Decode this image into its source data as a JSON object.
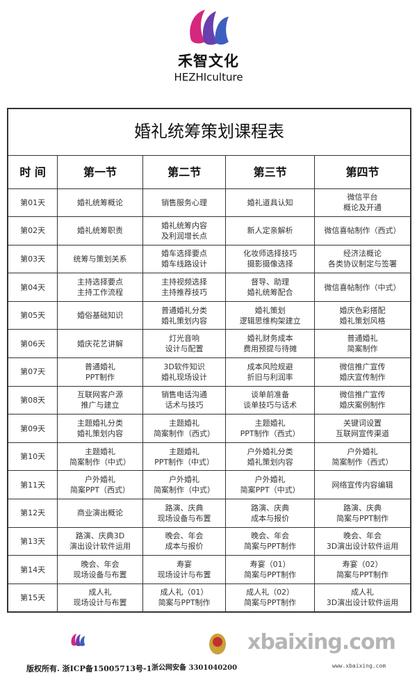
{
  "brand": {
    "name_cn": "禾智文化",
    "name_en": "HEZHIculture",
    "colors": {
      "magenta": "#d4277e",
      "blue": "#3d5fc0"
    }
  },
  "table": {
    "title": "婚礼统筹策划课程表",
    "headers": [
      "时 间",
      "第一节",
      "第二节",
      "第三节",
      "第四节"
    ],
    "rows": [
      [
        "第01天",
        "婚礼统筹概论",
        "销售服务心理",
        "婚礼道具认知",
        "微信平台\n概论及开通"
      ],
      [
        "第02天",
        "婚礼统筹职责",
        "婚礼统筹内容\n及利润增长点",
        "新人定亲解析",
        "微信喜帖制作（西式）"
      ],
      [
        "第03天",
        "统筹与策划关系",
        "婚车选择要点\n婚车线路设计",
        "化妆师选择技巧\n摄影摄像选择",
        "经济法概论\n各类协议制定与签署"
      ],
      [
        "第04天",
        "主持选择要点\n主持工作流程",
        "主持视频选择\n主持推荐技巧",
        "督导、助理\n婚礼统筹配合",
        "微信喜帖制作（中式）"
      ],
      [
        "第05天",
        "婚俗基础知识",
        "普通婚礼分类\n婚礼策划内容",
        "婚礼策划\n逻辑思维构架建立",
        "婚庆色彩搭配\n婚礼策划风格"
      ],
      [
        "第06天",
        "婚庆花艺讲解",
        "灯光音响\n设计与配置",
        "婚礼财务成本\n费用预提与待摊",
        "普通婚礼\n简案制作"
      ],
      [
        "第07天",
        "普通婚礼\nPPT制作",
        "3D软件知识\n婚礼现场设计",
        "成本风险规避\n折旧与利润率",
        "微信推广宣传\n婚庆宣传制作"
      ],
      [
        "第08天",
        "互联网客户源\n推广与建立",
        "销售电话沟通\n话术与技巧",
        "谈单前准备\n谈单技巧与话术",
        "微信推广宣传\n婚庆案例制作"
      ],
      [
        "第09天",
        "主题婚礼分类\n婚礼策划内容",
        "主题婚礼\n简案制作（西式）",
        "主题婚礼\nPPT制作（西式）",
        "关键词设置\n互联网宣传渠道"
      ],
      [
        "第10天",
        "主题婚礼\n简案制作（中式）",
        "主题婚礼\nPPT制作（中式）",
        "户外婚礼分类\n婚礼策划内容",
        "户外婚礼\n简案制作（西式）"
      ],
      [
        "第11天",
        "户外婚礼\n简案PPT（西式）",
        "户外婚礼\n简案制作（中式）",
        "户外婚礼\n简案PPT（中式）",
        "网络宣传内容编辑"
      ],
      [
        "第12天",
        "商业演出概论",
        "路演、庆典\n现场设备与布置",
        "路演、庆典\n成本与报价",
        "路演、庆典\n简案与PPT制作"
      ],
      [
        "第13天",
        "路演、庆典3D\n演出设计软件运用",
        "晚会、年会\n成本与报价",
        "晚会、年会\n简案与PPT制作",
        "晚会、年会\n3D演出设计软件运用"
      ],
      [
        "第14天",
        "晚会、年会\n现场设备与布置",
        "寿宴\n现场设计与布置",
        "寿宴（01）\n简案与PPT制作",
        "寿宴（02）\n简案与PPT制作"
      ],
      [
        "第15天",
        "成人礼\n现场设计与布置",
        "成人礼（01）\n简案与PPT制作",
        "成人礼（02）\n简案与PPT制作",
        "成人礼\n3D演出设计软件运用"
      ]
    ]
  },
  "footer": {
    "copyright": "版权所有. 浙ICP备15005713号-1",
    "police_record": "浙公网安备 3301040200",
    "watermark": "xbaixing.com",
    "watermark_url": "www.xbaixing.com"
  }
}
